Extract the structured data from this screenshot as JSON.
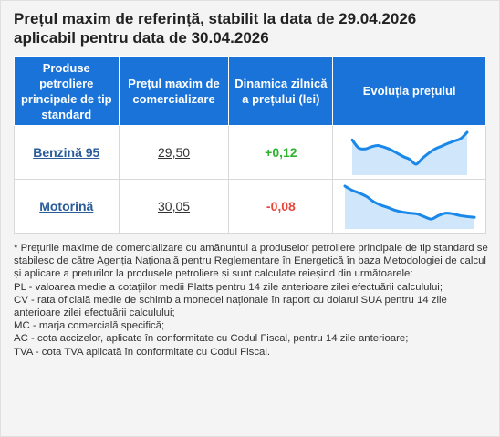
{
  "title_line1": "Prețul maxim de referință, stabilit la data de 29.04.2026",
  "title_line2": "aplicabil pentru data de 30.04.2026",
  "table": {
    "headers": [
      "Produse petroliere principale de tip standard",
      "Prețul maxim de comercializare",
      "Dinamica zilnică a prețului (lei)",
      "Evoluția prețului"
    ],
    "rows": [
      {
        "product": "Benzină 95",
        "price": "29,50",
        "change": "+0,12",
        "trend": [
          0.78,
          0.55,
          0.52,
          0.58,
          0.62,
          0.57,
          0.5,
          0.4,
          0.3,
          0.22,
          0.08,
          0.25,
          0.4,
          0.52,
          0.6,
          0.68,
          0.75,
          0.82,
          1.0
        ]
      },
      {
        "product": "Motorină",
        "price": "30,05",
        "change": "-0,08",
        "trend": [
          1.0,
          0.88,
          0.8,
          0.7,
          0.55,
          0.45,
          0.38,
          0.3,
          0.25,
          0.22,
          0.2,
          0.12,
          0.05,
          0.15,
          0.22,
          0.2,
          0.15,
          0.12,
          0.1
        ]
      }
    ],
    "colors": {
      "header_bg": "#1a73d9",
      "positive": "#2db32d",
      "negative": "#e8473b",
      "spark_line": "#1a88e8",
      "spark_fill": "#cfe6fb"
    }
  },
  "notes": [
    "* Prețurile maxime de comercializare cu amănuntul a produselor petroliere principale de tip standard se stabilesc de către Agenția Națională pentru Reglementare în Energetică în baza Metodologiei de calcul și aplicare a prețurilor la produsele petroliere și sunt calculate reieșind din următoarele:",
    "PL - valoarea medie a cotațiilor medii Platts pentru 14 zile anterioare zilei efectuării calculului;",
    "CV - rata oficială medie de schimb a monedei naționale în raport cu dolarul SUA pentru 14 zile anterioare zilei efectuării calculului;",
    "MC - marja comercială specifică;",
    "AC - cota accizelor, aplicate în conformitate cu Codul Fiscal, pentru 14 zile anterioare;",
    "TVA - cota TVA aplicată în conformitate cu Codul Fiscal."
  ]
}
